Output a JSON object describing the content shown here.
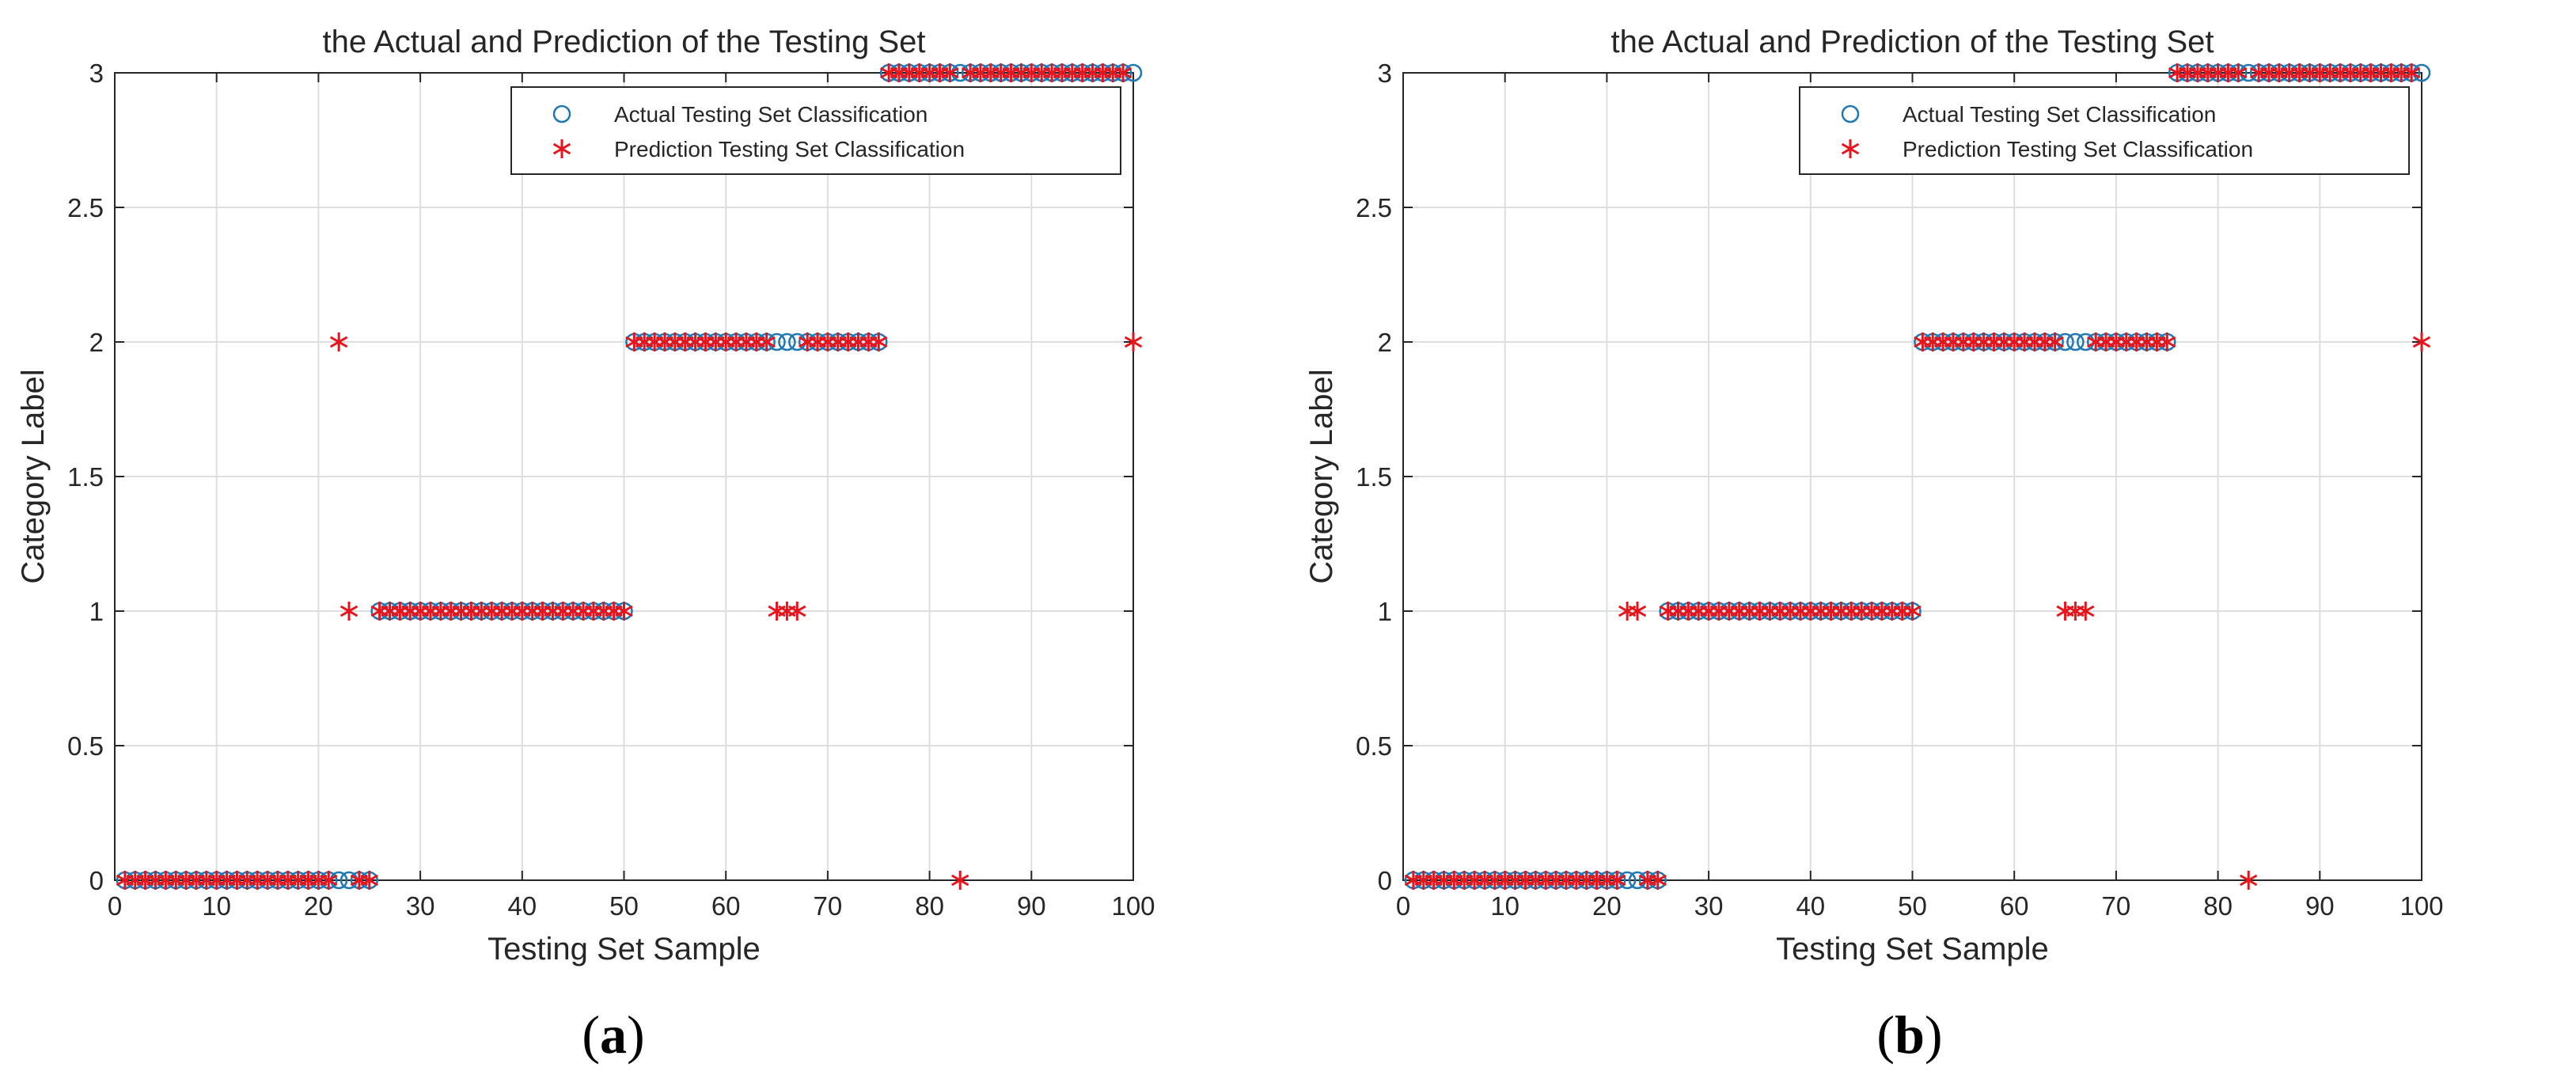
{
  "chart_data": [
    {
      "type": "scatter",
      "panel": "(a)",
      "title": "the Actual and Prediction of the Testing Set",
      "xlabel": "Testing Set Sample",
      "ylabel": "Category Label",
      "xlim": [
        0,
        100
      ],
      "ylim": [
        0,
        3
      ],
      "xticks": [
        0,
        10,
        20,
        30,
        40,
        50,
        60,
        70,
        80,
        90,
        100
      ],
      "yticks": [
        0,
        0.5,
        1,
        1.5,
        2,
        2.5,
        3
      ],
      "grid": true,
      "legend_position": "top-right",
      "series": [
        {
          "name": "Actual Testing Set Classification",
          "marker": "circle",
          "color": "#1f77b4",
          "values": [
            0,
            0,
            0,
            0,
            0,
            0,
            0,
            0,
            0,
            0,
            0,
            0,
            0,
            0,
            0,
            0,
            0,
            0,
            0,
            0,
            0,
            0,
            0,
            0,
            0,
            1,
            1,
            1,
            1,
            1,
            1,
            1,
            1,
            1,
            1,
            1,
            1,
            1,
            1,
            1,
            1,
            1,
            1,
            1,
            1,
            1,
            1,
            1,
            1,
            1,
            2,
            2,
            2,
            2,
            2,
            2,
            2,
            2,
            2,
            2,
            2,
            2,
            2,
            2,
            2,
            2,
            2,
            2,
            2,
            2,
            2,
            2,
            2,
            2,
            2,
            3,
            3,
            3,
            3,
            3,
            3,
            3,
            3,
            3,
            3,
            3,
            3,
            3,
            3,
            3,
            3,
            3,
            3,
            3,
            3,
            3,
            3,
            3,
            3,
            3
          ]
        },
        {
          "name": "Prediction Testing Set Classification",
          "marker": "asterisk",
          "color": "#e8141c",
          "values": [
            0,
            0,
            0,
            0,
            0,
            0,
            0,
            0,
            0,
            0,
            0,
            0,
            0,
            0,
            0,
            0,
            0,
            0,
            0,
            0,
            0,
            2,
            1,
            0,
            0,
            1,
            1,
            1,
            1,
            1,
            1,
            1,
            1,
            1,
            1,
            1,
            1,
            1,
            1,
            1,
            1,
            1,
            1,
            1,
            1,
            1,
            1,
            1,
            1,
            1,
            2,
            2,
            2,
            2,
            2,
            2,
            2,
            2,
            2,
            2,
            2,
            2,
            2,
            2,
            1,
            1,
            1,
            2,
            2,
            2,
            2,
            2,
            2,
            2,
            2,
            3,
            3,
            3,
            3,
            3,
            3,
            3,
            0,
            3,
            3,
            3,
            3,
            3,
            3,
            3,
            3,
            3,
            3,
            3,
            3,
            3,
            3,
            3,
            3,
            2
          ]
        }
      ]
    },
    {
      "type": "scatter",
      "panel": "(b)",
      "title": "the Actual and Prediction of the Testing Set",
      "xlabel": "Testing Set Sample",
      "ylabel": "Category Label",
      "xlim": [
        0,
        100
      ],
      "ylim": [
        0,
        3
      ],
      "xticks": [
        0,
        10,
        20,
        30,
        40,
        50,
        60,
        70,
        80,
        90,
        100
      ],
      "yticks": [
        0,
        0.5,
        1,
        1.5,
        2,
        2.5,
        3
      ],
      "grid": true,
      "legend_position": "top-right",
      "series": [
        {
          "name": "Actual Testing Set Classification",
          "marker": "circle",
          "color": "#1f77b4",
          "values": [
            0,
            0,
            0,
            0,
            0,
            0,
            0,
            0,
            0,
            0,
            0,
            0,
            0,
            0,
            0,
            0,
            0,
            0,
            0,
            0,
            0,
            0,
            0,
            0,
            0,
            1,
            1,
            1,
            1,
            1,
            1,
            1,
            1,
            1,
            1,
            1,
            1,
            1,
            1,
            1,
            1,
            1,
            1,
            1,
            1,
            1,
            1,
            1,
            1,
            1,
            2,
            2,
            2,
            2,
            2,
            2,
            2,
            2,
            2,
            2,
            2,
            2,
            2,
            2,
            2,
            2,
            2,
            2,
            2,
            2,
            2,
            2,
            2,
            2,
            2,
            3,
            3,
            3,
            3,
            3,
            3,
            3,
            3,
            3,
            3,
            3,
            3,
            3,
            3,
            3,
            3,
            3,
            3,
            3,
            3,
            3,
            3,
            3,
            3,
            3
          ]
        },
        {
          "name": "Prediction Testing Set Classification",
          "marker": "asterisk",
          "color": "#e8141c",
          "values": [
            0,
            0,
            0,
            0,
            0,
            0,
            0,
            0,
            0,
            0,
            0,
            0,
            0,
            0,
            0,
            0,
            0,
            0,
            0,
            0,
            0,
            1,
            1,
            0,
            0,
            1,
            1,
            1,
            1,
            1,
            1,
            1,
            1,
            1,
            1,
            1,
            1,
            1,
            1,
            1,
            1,
            1,
            1,
            1,
            1,
            1,
            1,
            1,
            1,
            1,
            2,
            2,
            2,
            2,
            2,
            2,
            2,
            2,
            2,
            2,
            2,
            2,
            2,
            2,
            1,
            1,
            1,
            2,
            2,
            2,
            2,
            2,
            2,
            2,
            2,
            3,
            3,
            3,
            3,
            3,
            3,
            3,
            0,
            3,
            3,
            3,
            3,
            3,
            3,
            3,
            3,
            3,
            3,
            3,
            3,
            3,
            3,
            3,
            3,
            2
          ]
        }
      ]
    }
  ]
}
